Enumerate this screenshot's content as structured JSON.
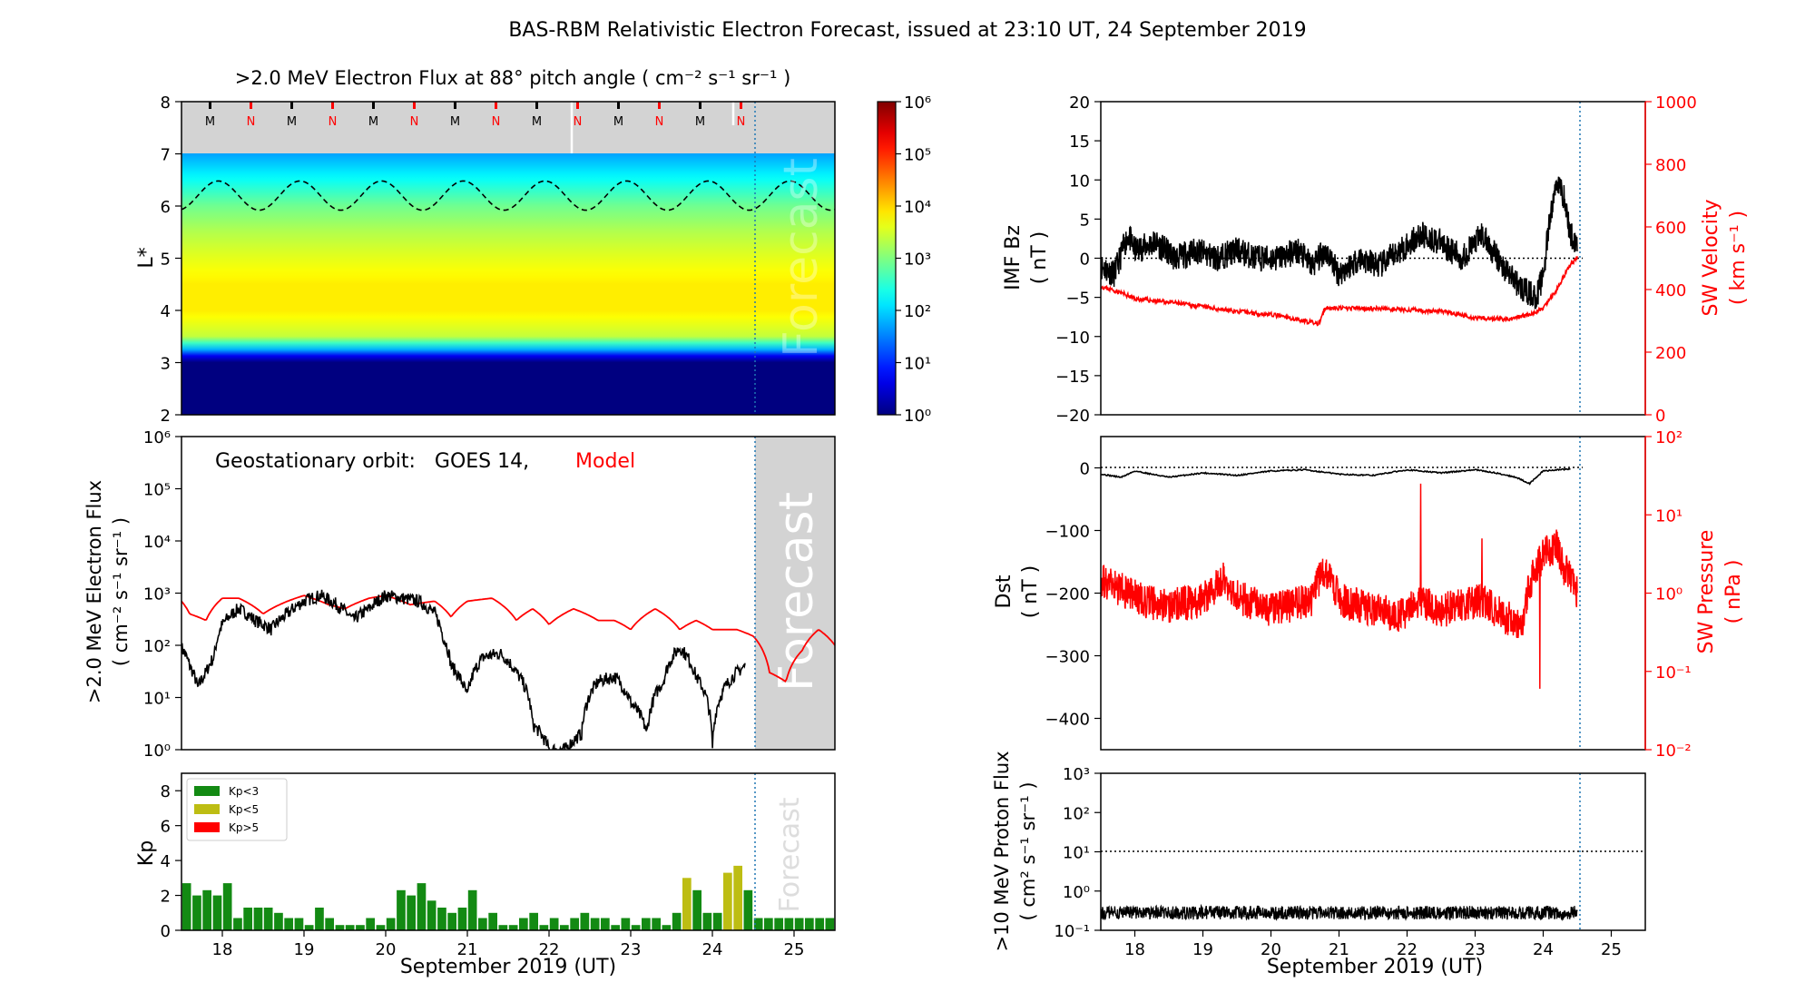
{
  "figure_title": "BAS-RBM Relativistic Electron Forecast, issued at 23:10 UT, 24 September 2019",
  "x_axis": {
    "ticks": [
      "18",
      "19",
      "20",
      "21",
      "22",
      "23",
      "24",
      "25"
    ],
    "left_label": "September 2019 (UT)",
    "right_label": "September 2019 (UT)",
    "range_days": [
      17.5,
      25.5
    ],
    "forecast_start_day": 24.45,
    "right_data_end_day": 24.5
  },
  "forecast_labels": {
    "heatmap": "Forecast",
    "geo": "Forecast",
    "kp": "Forecast"
  },
  "heatmap": {
    "title": ">2.0 MeV Electron Flux at 88° pitch angle ( cm⁻² s⁻¹ sr⁻¹ )",
    "ylabel": "L*",
    "yticks": [
      "2",
      "3",
      "4",
      "5",
      "6",
      "7",
      "8"
    ],
    "ylim": [
      2,
      8
    ],
    "colorbar_ticks": [
      "10⁰",
      "10¹",
      "10²",
      "10³",
      "10⁴",
      "10⁵",
      "10⁶"
    ],
    "colorbar_range_log": [
      0,
      6
    ],
    "mn_markers": [
      "M",
      "N",
      "M",
      "N",
      "M",
      "N",
      "M",
      "N",
      "M",
      "N",
      "M",
      "N",
      "M",
      "N"
    ],
    "marker_colors": {
      "M": "#000000",
      "N": "#ff0000"
    }
  },
  "geo": {
    "legend_prefix": "Geostationary orbit:   GOES 14,",
    "legend_model": "Model",
    "ylabel_line1": ">2.0 MeV Electron Flux",
    "ylabel_line2": "( cm⁻² s⁻¹ sr⁻¹ )",
    "yticks": [
      "10⁰",
      "10¹",
      "10²",
      "10³",
      "10⁴",
      "10⁵",
      "10⁶"
    ]
  },
  "kp": {
    "ylabel": "Kp",
    "yticks": [
      "0",
      "2",
      "4",
      "6",
      "8"
    ],
    "legend": [
      "Kp<3",
      "Kp<5",
      "Kp>5"
    ],
    "colors": [
      "#138a13",
      "#bdbd13",
      "#ff0000"
    ]
  },
  "imf": {
    "ylabel_line1": "IMF Bz",
    "ylabel_line2": "( nT )",
    "yticks_left": [
      "20",
      "15",
      "10",
      "5",
      "0",
      "−5",
      "−10",
      "−15",
      "−20"
    ],
    "ylabel_right_line1": "SW Velocity",
    "ylabel_right_line2": "( km s⁻¹ )",
    "yticks_right": [
      "1000",
      "800",
      "600",
      "400",
      "200",
      "0"
    ]
  },
  "dst": {
    "ylabel_line1": "Dst",
    "ylabel_line2": "( nT )",
    "yticks_left": [
      "0",
      "−100",
      "−200",
      "−300",
      "−400"
    ],
    "ylabel_right_line1": "SW Pressure",
    "ylabel_right_line2": "( nPa )",
    "yticks_right": [
      "10²",
      "10¹",
      "10⁰",
      "10⁻¹",
      "10⁻²"
    ]
  },
  "proton": {
    "ylabel_line1": ">10 MeV Proton Flux",
    "ylabel_line2": "( cm² s⁻¹ sr⁻¹ )",
    "yticks": [
      "10³",
      "10²",
      "10¹",
      "10⁰",
      "10⁻¹"
    ]
  },
  "chart_data": [
    {
      "type": "heatmap",
      "title": ">2.0 MeV Electron Flux at 88° pitch angle ( cm⁻² s⁻¹ sr⁻¹ )",
      "ylabel": "L*",
      "ylim": [
        2,
        8
      ],
      "colorbar": "log10 flux, 10⁰ to 10⁶",
      "profile_log_flux_by_L": [
        [
          2.0,
          0
        ],
        [
          3.05,
          0
        ],
        [
          3.25,
          1.8
        ],
        [
          3.5,
          3.4
        ],
        [
          4.0,
          3.85
        ],
        [
          4.5,
          3.85
        ],
        [
          5.0,
          3.6
        ],
        [
          5.5,
          3.3
        ],
        [
          6.0,
          2.9
        ],
        [
          6.5,
          2.3
        ],
        [
          7.0,
          1.7
        ]
      ],
      "last_closed_drift_shell": {
        "mean": 6.2,
        "amplitude": 0.28,
        "period_days": 1.0
      }
    },
    {
      "type": "line",
      "ylabel": ">2.0 MeV Electron Flux ( cm⁻² s⁻¹ sr⁻¹ )",
      "yscale": "log",
      "ylim": [
        1,
        1000000
      ],
      "series": [
        {
          "name": "GOES 14",
          "color": "#000000",
          "x": [
            17.5,
            17.6,
            17.7,
            17.8,
            17.9,
            18.0,
            18.2,
            18.4,
            18.6,
            18.8,
            19.0,
            19.2,
            19.4,
            19.6,
            19.8,
            20.0,
            20.2,
            20.4,
            20.6,
            20.7,
            20.8,
            21.0,
            21.2,
            21.4,
            21.6,
            21.8,
            22.0,
            22.2,
            22.4,
            22.6,
            22.8,
            23.0,
            23.2,
            23.4,
            23.6,
            23.8,
            24.0,
            24.2,
            24.4
          ],
          "y": [
            90,
            40,
            15,
            30,
            60,
            250,
            500,
            300,
            200,
            400,
            700,
            900,
            600,
            300,
            500,
            900,
            800,
            700,
            400,
            150,
            40,
            10,
            60,
            70,
            30,
            3,
            1,
            1,
            2,
            20,
            25,
            8,
            2,
            20,
            90,
            25,
            1,
            20,
            40
          ]
        },
        {
          "name": "Model",
          "color": "#ff0000",
          "x": [
            17.5,
            17.6,
            17.8,
            18.0,
            18.2,
            18.5,
            18.8,
            19.0,
            19.3,
            19.5,
            19.8,
            20.0,
            20.3,
            20.6,
            20.8,
            21.0,
            21.3,
            21.6,
            21.8,
            22.0,
            22.3,
            22.6,
            22.8,
            23.0,
            23.3,
            23.6,
            23.8,
            24.0,
            24.3,
            24.5,
            24.7,
            24.9,
            25.1,
            25.3,
            25.5
          ],
          "y": [
            700,
            400,
            300,
            800,
            800,
            400,
            700,
            900,
            600,
            500,
            800,
            900,
            600,
            700,
            350,
            700,
            800,
            300,
            500,
            250,
            500,
            300,
            300,
            200,
            500,
            200,
            300,
            200,
            200,
            150,
            30,
            20,
            80,
            200,
            100
          ]
        }
      ]
    },
    {
      "type": "bar",
      "ylabel": "Kp",
      "ylim": [
        0,
        9
      ],
      "legend": [
        "Kp<3",
        "Kp<5",
        "Kp>5"
      ],
      "bin_hours": 3,
      "start_day": 17.5,
      "values": [
        2.7,
        2.0,
        2.3,
        2.0,
        2.7,
        0.7,
        1.3,
        1.3,
        1.3,
        1.0,
        0.7,
        0.7,
        0.3,
        1.3,
        0.7,
        0.3,
        0.3,
        0.3,
        0.7,
        0.3,
        0.7,
        2.3,
        2.0,
        2.7,
        1.7,
        1.3,
        1.0,
        1.3,
        2.3,
        0.7,
        1.0,
        0.3,
        0.3,
        0.7,
        1.0,
        0.3,
        0.7,
        0.3,
        0.7,
        1.0,
        0.7,
        0.7,
        0.3,
        0.7,
        0.3,
        0.7,
        0.7,
        0.3,
        1.0,
        3.0,
        2.3,
        1.0,
        1.0,
        3.3,
        3.7,
        2.3
      ],
      "forecast_values": [
        0.7,
        0.7,
        0.7,
        0.7,
        0.7,
        0.7,
        0.7,
        0.7
      ]
    },
    {
      "type": "line",
      "ylabel": "IMF Bz ( nT )",
      "ylim": [
        -20,
        20
      ],
      "y2label": "SW Velocity ( km s⁻¹ )",
      "y2lim": [
        0,
        1000
      ],
      "series": [
        {
          "name": "IMF Bz",
          "axis": "left",
          "color": "#000000",
          "x": [
            17.5,
            17.7,
            17.9,
            18.0,
            18.3,
            18.6,
            18.9,
            19.2,
            19.5,
            19.8,
            20.1,
            20.4,
            20.6,
            20.8,
            21.0,
            21.3,
            21.6,
            21.9,
            22.2,
            22.5,
            22.8,
            23.1,
            23.4,
            23.7,
            23.9,
            24.0,
            24.1,
            24.2,
            24.3,
            24.4,
            24.5
          ],
          "y": [
            -1,
            -2,
            3,
            1,
            2,
            0,
            1,
            0,
            1,
            0,
            0,
            1,
            -1,
            1,
            -2,
            0,
            -1,
            1,
            3,
            2,
            0,
            3,
            -1,
            -4,
            -5,
            -2,
            5,
            10,
            8,
            3,
            2
          ]
        },
        {
          "name": "SW Velocity",
          "axis": "right",
          "color": "#ff0000",
          "x": [
            17.5,
            17.8,
            18.0,
            18.5,
            19.0,
            19.5,
            20.0,
            20.5,
            20.7,
            20.8,
            21.0,
            21.5,
            22.0,
            22.5,
            23.0,
            23.5,
            23.8,
            24.0,
            24.2,
            24.4,
            24.5
          ],
          "y": [
            410,
            390,
            370,
            360,
            345,
            330,
            320,
            300,
            290,
            340,
            340,
            340,
            335,
            330,
            310,
            305,
            320,
            340,
            400,
            480,
            500
          ]
        }
      ]
    },
    {
      "type": "line",
      "ylabel": "Dst ( nT )",
      "ylim": [
        -450,
        50
      ],
      "y2label": "SW Pressure ( nPa )",
      "y2scale": "log",
      "y2lim": [
        0.01,
        100
      ],
      "series": [
        {
          "name": "Dst",
          "axis": "left",
          "color": "#000000",
          "x": [
            17.5,
            17.8,
            18.0,
            18.5,
            19.0,
            19.5,
            20.0,
            20.5,
            21.0,
            21.5,
            22.0,
            22.5,
            23.0,
            23.3,
            23.6,
            23.8,
            24.0,
            24.2,
            24.4
          ],
          "y": [
            -10,
            -15,
            -5,
            -15,
            -8,
            -12,
            -5,
            -3,
            -10,
            -12,
            -3,
            -8,
            -3,
            -8,
            -15,
            -25,
            -5,
            -3,
            -2
          ]
        },
        {
          "name": "SW Pressure",
          "axis": "right",
          "color": "#ff0000",
          "x": [
            17.5,
            17.7,
            17.9,
            18.1,
            18.5,
            19.0,
            19.3,
            19.5,
            19.8,
            20.0,
            20.3,
            20.6,
            20.8,
            21.0,
            21.3,
            21.6,
            21.9,
            22.2,
            22.5,
            22.8,
            23.1,
            23.4,
            23.7,
            24.0,
            24.2,
            24.3,
            24.4,
            24.5
          ],
          "y": [
            1.5,
            1.2,
            1.0,
            0.8,
            0.7,
            0.8,
            1.5,
            0.9,
            0.7,
            0.6,
            0.7,
            0.8,
            2.0,
            0.8,
            0.7,
            0.6,
            0.5,
            0.8,
            0.6,
            0.7,
            0.8,
            0.5,
            0.4,
            3.0,
            4.0,
            2.0,
            1.5,
            1.0
          ]
        }
      ]
    },
    {
      "type": "line",
      "ylabel": ">10 MeV Proton Flux ( cm² s⁻¹ sr⁻¹ )",
      "yscale": "log",
      "ylim": [
        0.1,
        1000
      ],
      "threshold": 10,
      "series": [
        {
          "name": ">10 MeV Proton Flux",
          "color": "#000000",
          "mean": 0.28,
          "x_range": [
            17.5,
            24.5
          ]
        }
      ]
    }
  ]
}
